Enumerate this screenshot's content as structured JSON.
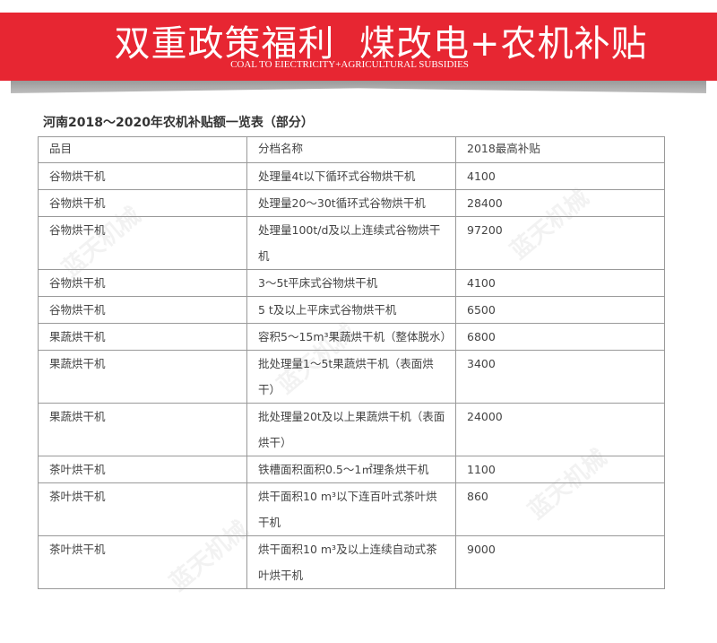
{
  "banner": {
    "title": "双重政策福利  煤改电+农机补贴",
    "subtitle": "COAL TO EIECTRICITY+AGRICULTURAL SUBSIDIES",
    "color": "#e72632"
  },
  "watermark": "蓝天机械",
  "table": {
    "caption": "河南2018～2020年农机补贴额一览表（部分）",
    "headers": [
      "品目",
      "分档名称",
      "2018最高补贴"
    ],
    "rows": [
      [
        "谷物烘干机",
        "处理量4t以下循环式谷物烘干机",
        "4100"
      ],
      [
        "谷物烘干机",
        "处理量20～30t循环式谷物烘干机",
        "28400"
      ],
      [
        "谷物烘干机",
        "处理量100t/d及以上连续式谷物烘干机",
        "97200"
      ],
      [
        "谷物烘干机",
        "3～5t平床式谷物烘干机",
        "4100"
      ],
      [
        "谷物烘干机",
        "5 t及以上平床式谷物烘干机",
        "6500"
      ],
      [
        "果蔬烘干机",
        "容积5～15m³果蔬烘干机（整体脱水）",
        "6800"
      ],
      [
        "果蔬烘干机",
        "批处理量1～5t果蔬烘干机（表面烘干）",
        "3400"
      ],
      [
        "果蔬烘干机",
        "批处理量20t及以上果蔬烘干机（表面烘干）",
        "24000"
      ],
      [
        "茶叶烘干机",
        "铁槽面积面积0.5～1㎡理条烘干机",
        "1100"
      ],
      [
        "茶叶烘干机",
        "烘干面积10 m³以下连百叶式茶叶烘干机",
        "860"
      ],
      [
        "茶叶烘干机",
        "烘干面积10 m³及以上连续自动式茶叶烘干机",
        "9000"
      ]
    ]
  }
}
